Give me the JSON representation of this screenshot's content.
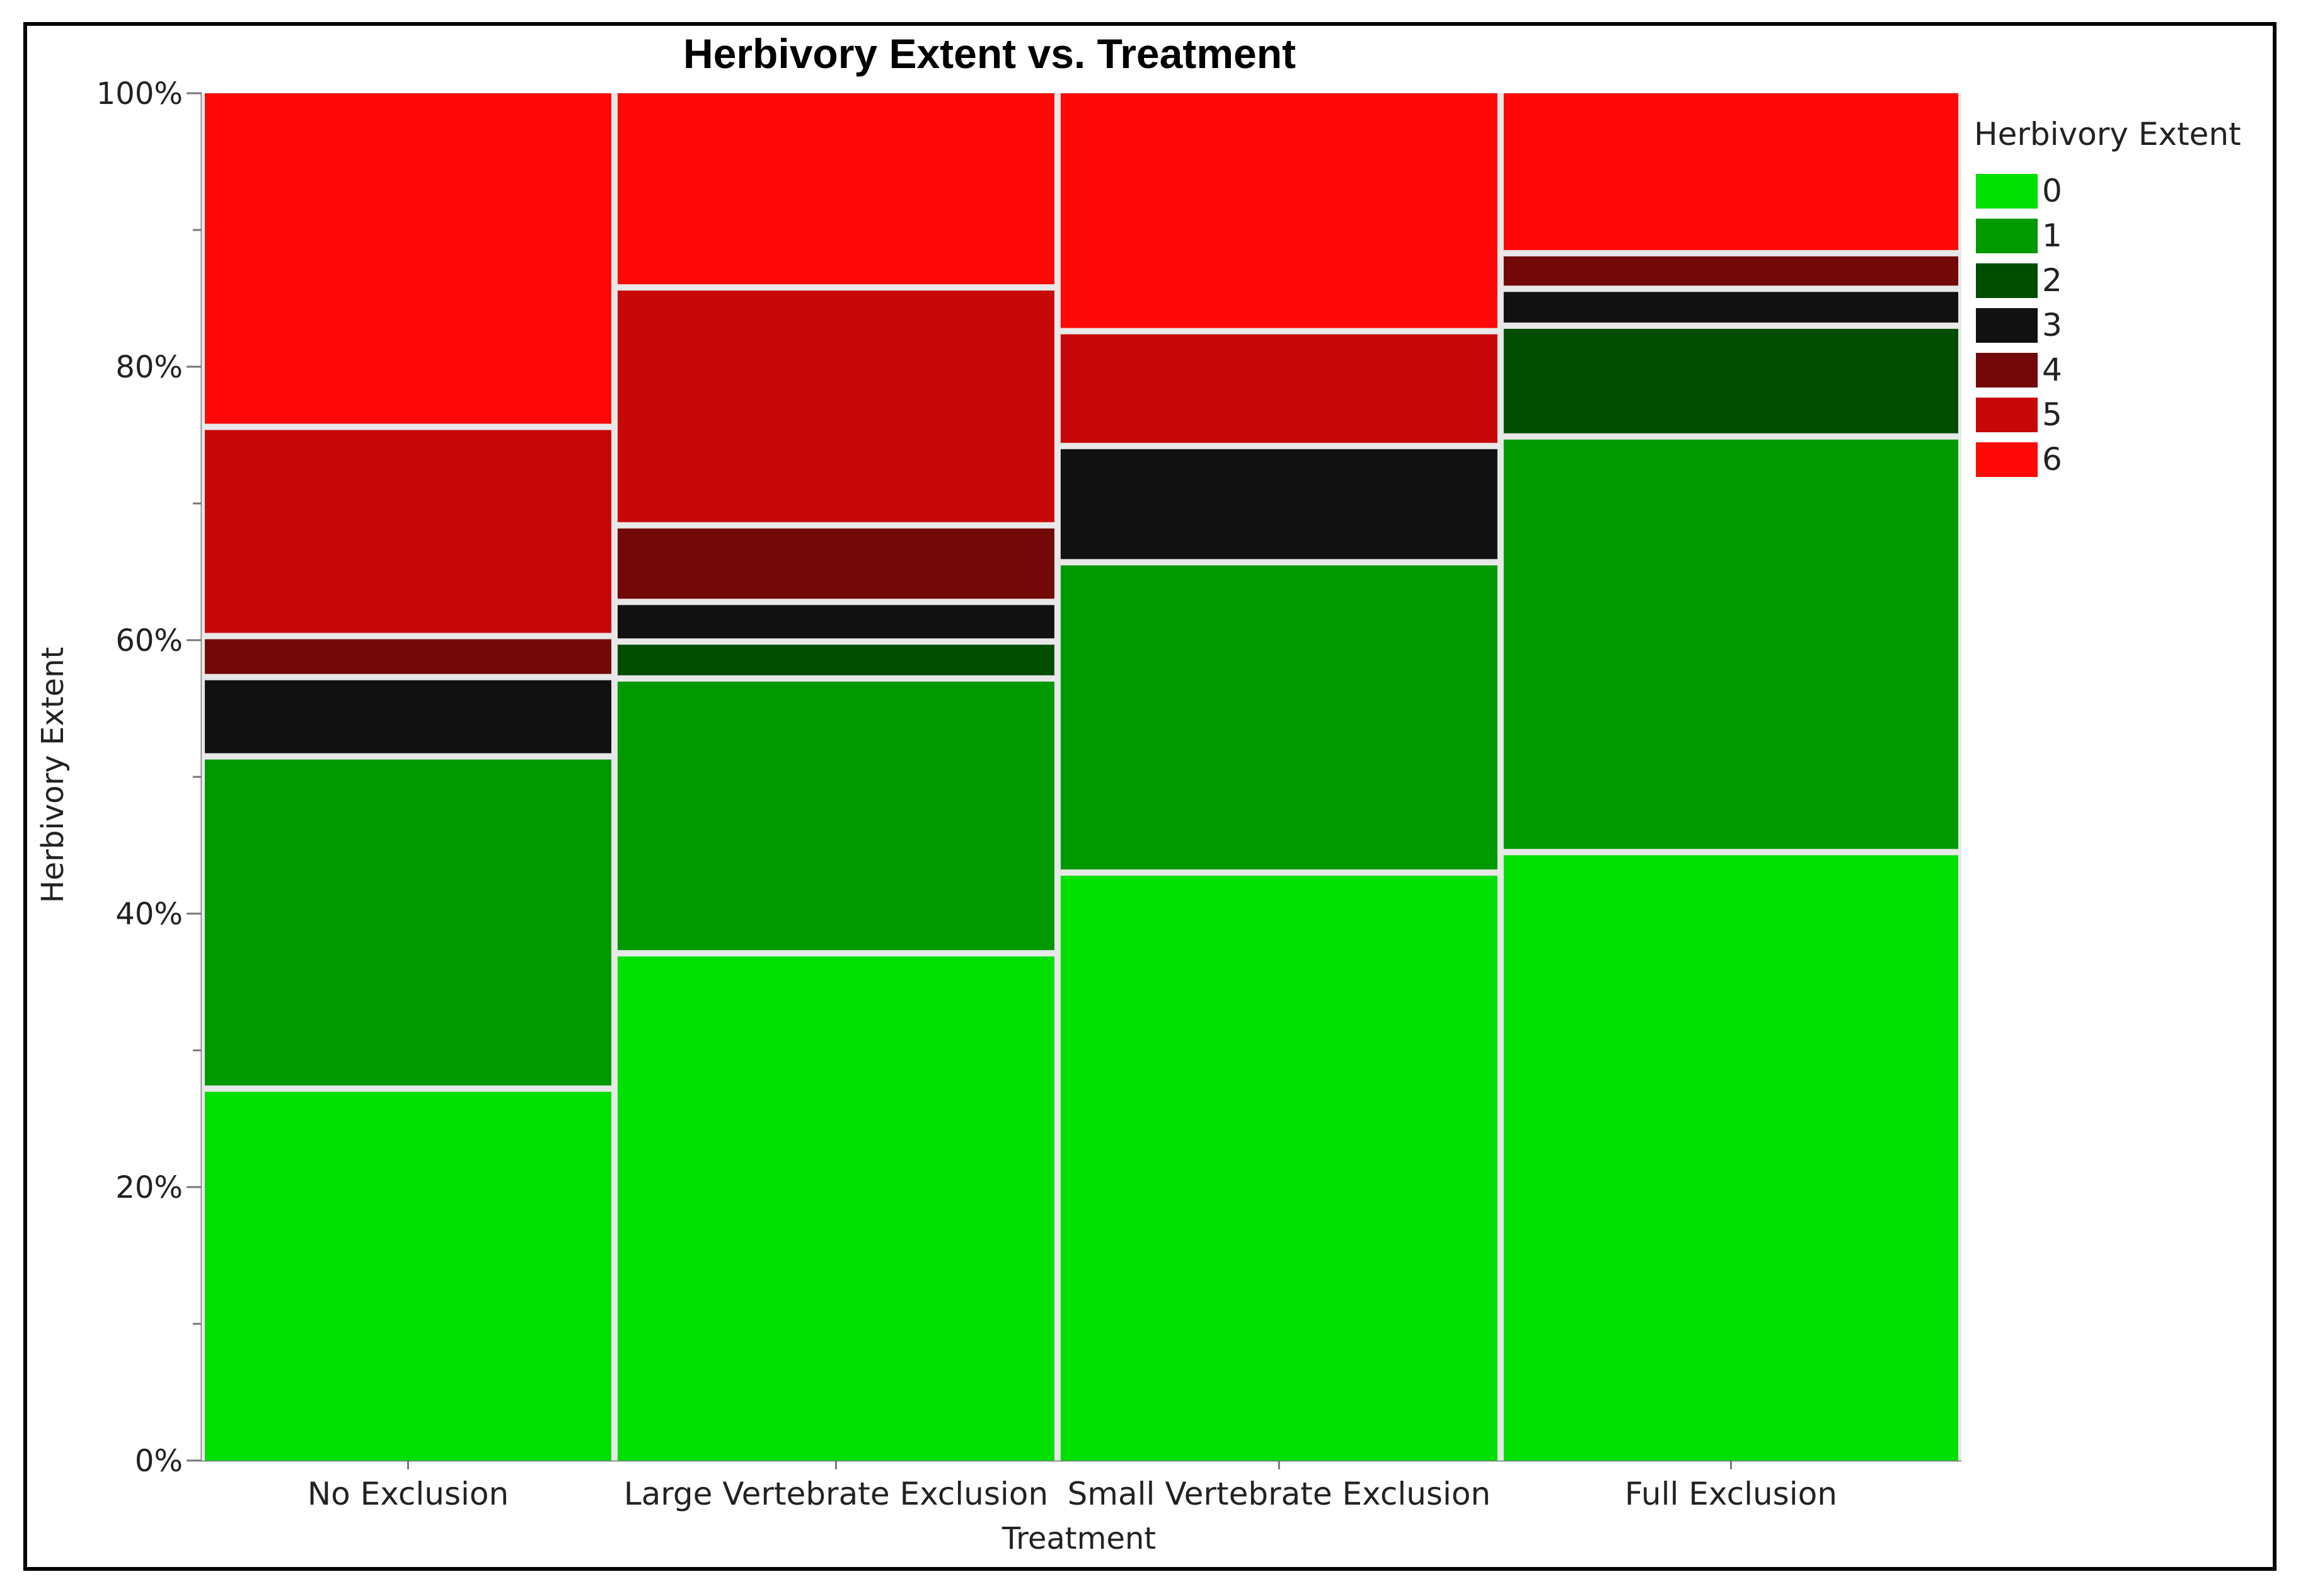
{
  "chart_data": {
    "type": "mosaic",
    "title": "Herbivory Extent vs. Treatment",
    "xlabel": "Treatment",
    "ylabel": "Herbivory Extent",
    "y_ticks": [
      "0%",
      "20%",
      "40%",
      "60%",
      "80%",
      "100%"
    ],
    "ylim": [
      0,
      100
    ],
    "legend": {
      "title": "Herbivory Extent",
      "placement": "right",
      "entries": [
        {
          "label": "0",
          "color": "#00e000"
        },
        {
          "label": "1",
          "color": "#009900"
        },
        {
          "label": "2",
          "color": "#004d00"
        },
        {
          "label": "3",
          "color": "#111111"
        },
        {
          "label": "4",
          "color": "#730808"
        },
        {
          "label": "5",
          "color": "#c80808"
        },
        {
          "label": "6",
          "color": "#ff0808"
        }
      ]
    },
    "categories": [
      "No Exclusion",
      "Large Vertebrate Exclusion",
      "Small Vertebrate Exclusion",
      "Full Exclusion"
    ],
    "category_share": [
      0.232,
      0.249,
      0.249,
      0.259
    ],
    "series": [
      {
        "name": "0",
        "values": [
          27.2,
          37.1,
          43.0,
          44.5
        ]
      },
      {
        "name": "1",
        "values": [
          24.3,
          20.1,
          22.7,
          30.4
        ]
      },
      {
        "name": "2",
        "values": [
          0.0,
          2.7,
          0.0,
          8.1
        ]
      },
      {
        "name": "3",
        "values": [
          5.8,
          2.9,
          8.5,
          2.7
        ]
      },
      {
        "name": "4",
        "values": [
          3.0,
          5.6,
          0.0,
          2.6
        ]
      },
      {
        "name": "5",
        "values": [
          15.3,
          17.4,
          8.4,
          0.0
        ]
      },
      {
        "name": "6",
        "values": [
          24.4,
          14.2,
          17.4,
          11.7
        ]
      }
    ]
  }
}
